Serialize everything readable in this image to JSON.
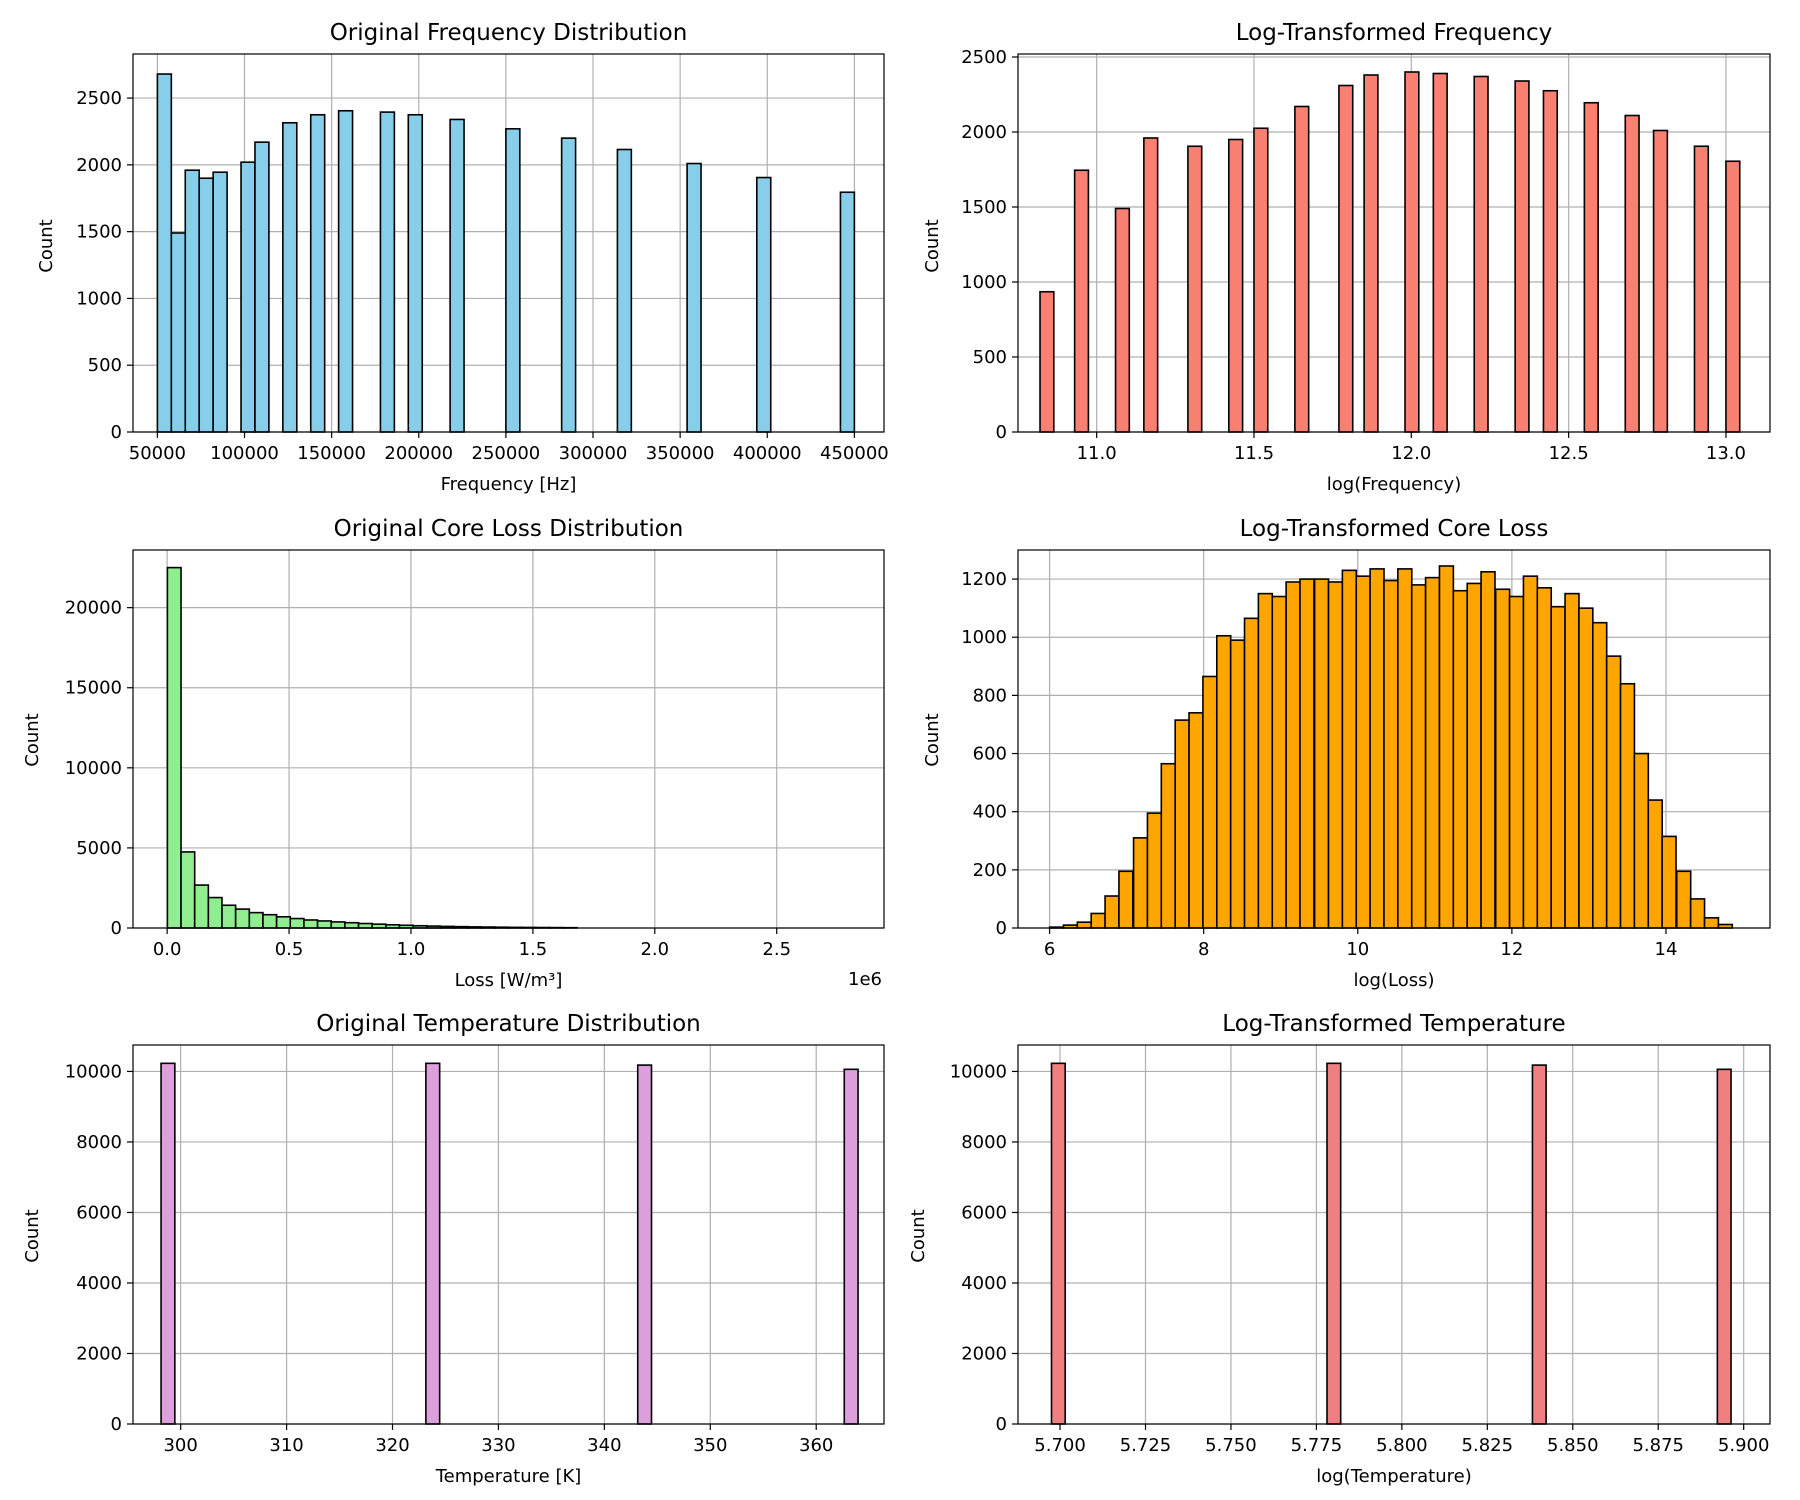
{
  "chart_data": [
    {
      "type": "bar",
      "title": "Original Frequency Distribution",
      "xlabel": "Frequency [Hz]",
      "ylabel": "Count",
      "xlim": [
        36000,
        467000
      ],
      "ylim": [
        0,
        2830
      ],
      "xticks": [
        50000,
        100000,
        150000,
        200000,
        250000,
        300000,
        350000,
        400000,
        450000
      ],
      "yticks": [
        0,
        500,
        1000,
        1500,
        2000,
        2500
      ],
      "grid": true,
      "color": "#87ceeb",
      "bin_width": 8000,
      "bins": [
        [
          50000,
          2680
        ],
        [
          58000,
          1490
        ],
        [
          66000,
          1960
        ],
        [
          74000,
          1900
        ],
        [
          82000,
          1945
        ],
        [
          98000,
          2020
        ],
        [
          106000,
          2170
        ],
        [
          122000,
          2315
        ],
        [
          138000,
          2375
        ],
        [
          154000,
          2405
        ],
        [
          178000,
          2395
        ],
        [
          194000,
          2375
        ],
        [
          218000,
          2340
        ],
        [
          250000,
          2270
        ],
        [
          282000,
          2200
        ],
        [
          314000,
          2115
        ],
        [
          354000,
          2010
        ],
        [
          394000,
          1905
        ],
        [
          442000,
          1795
        ]
      ]
    },
    {
      "type": "bar",
      "title": "Log-Transformed Frequency",
      "xlabel": "log(Frequency)",
      "ylabel": "Count",
      "xlim": [
        10.75,
        13.14
      ],
      "ylim": [
        0,
        2520
      ],
      "xticks": [
        11.0,
        11.5,
        12.0,
        12.5,
        13.0
      ],
      "xtick_labels": [
        "11.0",
        "11.5",
        "12.0",
        "12.5",
        "13.0"
      ],
      "yticks": [
        0,
        500,
        1000,
        1500,
        2000,
        2500
      ],
      "grid": true,
      "color": "#fa8072",
      "bin_width": 0.0438,
      "bins": [
        [
          10.82,
          935
        ],
        [
          10.93,
          1745
        ],
        [
          11.06,
          1490
        ],
        [
          11.15,
          1960
        ],
        [
          11.29,
          1905
        ],
        [
          11.42,
          1950
        ],
        [
          11.5,
          2025
        ],
        [
          11.63,
          2170
        ],
        [
          11.77,
          2310
        ],
        [
          11.85,
          2380
        ],
        [
          11.98,
          2400
        ],
        [
          12.07,
          2390
        ],
        [
          12.2,
          2370
        ],
        [
          12.33,
          2340
        ],
        [
          12.42,
          2275
        ],
        [
          12.55,
          2195
        ],
        [
          12.68,
          2110
        ],
        [
          12.77,
          2010
        ],
        [
          12.9,
          1905
        ],
        [
          13.0,
          1805
        ]
      ]
    },
    {
      "type": "bar",
      "title": "Original Core Loss Distribution",
      "xlabel": "Loss [W/m³]",
      "ylabel": "Count",
      "offset_label": "1e6",
      "xlim": [
        -140000,
        2940000
      ],
      "ylim": [
        0,
        23600
      ],
      "xticks": [
        0.0,
        0.5,
        1.0,
        1.5,
        2.0,
        2.5
      ],
      "xtick_labels": [
        "0.0",
        "0.5",
        "1.0",
        "1.5",
        "2.0",
        "2.5"
      ],
      "yticks": [
        0,
        5000,
        10000,
        15000,
        20000
      ],
      "grid": true,
      "color": "#90ee90",
      "bin_width": 56000,
      "bins": [
        [
          1000,
          22500
        ],
        [
          57000,
          4750
        ],
        [
          113000,
          2680
        ],
        [
          169000,
          1900
        ],
        [
          225000,
          1420
        ],
        [
          281000,
          1180
        ],
        [
          337000,
          960
        ],
        [
          393000,
          830
        ],
        [
          449000,
          700
        ],
        [
          505000,
          590
        ],
        [
          561000,
          500
        ],
        [
          617000,
          440
        ],
        [
          673000,
          380
        ],
        [
          729000,
          330
        ],
        [
          785000,
          280
        ],
        [
          841000,
          240
        ],
        [
          897000,
          200
        ],
        [
          953000,
          170
        ],
        [
          1009000,
          140
        ],
        [
          1065000,
          120
        ],
        [
          1121000,
          100
        ],
        [
          1177000,
          85
        ],
        [
          1233000,
          70
        ],
        [
          1289000,
          60
        ],
        [
          1345000,
          50
        ],
        [
          1401000,
          40
        ],
        [
          1457000,
          35
        ],
        [
          1513000,
          30
        ],
        [
          1569000,
          25
        ],
        [
          1625000,
          20
        ]
      ]
    },
    {
      "type": "bar",
      "title": "Log-Transformed Core Loss",
      "xlabel": "log(Loss)",
      "ylabel": "Count",
      "xlim": [
        5.59,
        15.35
      ],
      "ylim": [
        0,
        1300
      ],
      "xticks": [
        6,
        8,
        10,
        12,
        14
      ],
      "yticks": [
        0,
        200,
        400,
        600,
        800,
        1000,
        1200
      ],
      "grid": true,
      "color": "#ffa500",
      "bin_width": 0.1806,
      "bins": [
        [
          6.0,
          3
        ],
        [
          6.18,
          10
        ],
        [
          6.36,
          20
        ],
        [
          6.54,
          50
        ],
        [
          6.72,
          110
        ],
        [
          6.9,
          195
        ],
        [
          7.09,
          310
        ],
        [
          7.27,
          395
        ],
        [
          7.45,
          565
        ],
        [
          7.63,
          715
        ],
        [
          7.81,
          740
        ],
        [
          7.99,
          865
        ],
        [
          8.17,
          1005
        ],
        [
          8.35,
          990
        ],
        [
          8.53,
          1065
        ],
        [
          8.71,
          1150
        ],
        [
          8.89,
          1140
        ],
        [
          9.07,
          1190
        ],
        [
          9.25,
          1200
        ],
        [
          9.44,
          1200
        ],
        [
          9.62,
          1190
        ],
        [
          9.8,
          1230
        ],
        [
          9.98,
          1210
        ],
        [
          10.16,
          1235
        ],
        [
          10.34,
          1195
        ],
        [
          10.52,
          1235
        ],
        [
          10.7,
          1180
        ],
        [
          10.88,
          1205
        ],
        [
          11.06,
          1245
        ],
        [
          11.24,
          1160
        ],
        [
          11.42,
          1185
        ],
        [
          11.6,
          1225
        ],
        [
          11.79,
          1165
        ],
        [
          11.97,
          1140
        ],
        [
          12.15,
          1210
        ],
        [
          12.33,
          1170
        ],
        [
          12.51,
          1105
        ],
        [
          12.69,
          1150
        ],
        [
          12.87,
          1100
        ],
        [
          13.05,
          1050
        ],
        [
          13.23,
          935
        ],
        [
          13.41,
          840
        ],
        [
          13.59,
          600
        ],
        [
          13.77,
          440
        ],
        [
          13.95,
          315
        ],
        [
          14.14,
          195
        ],
        [
          14.32,
          100
        ],
        [
          14.5,
          35
        ],
        [
          14.68,
          12
        ]
      ]
    },
    {
      "type": "bar",
      "title": "Original Temperature Distribution",
      "xlabel": "Temperature [K]",
      "ylabel": "Count",
      "xlim": [
        295.5,
        366.4
      ],
      "ylim": [
        0,
        10750
      ],
      "xticks": [
        300,
        310,
        320,
        330,
        340,
        350,
        360
      ],
      "yticks": [
        0,
        2000,
        4000,
        6000,
        8000,
        10000
      ],
      "grid": true,
      "color": "#dda0dd",
      "bin_width": 1.3,
      "bins": [
        [
          298.15,
          10230
        ],
        [
          323.15,
          10230
        ],
        [
          343.15,
          10180
        ],
        [
          362.65,
          10060
        ]
      ]
    },
    {
      "type": "bar",
      "title": "Log-Transformed Temperature",
      "xlabel": "log(Temperature)",
      "ylabel": "Count",
      "xlim": [
        5.6877,
        5.9077
      ],
      "ylim": [
        0,
        10750
      ],
      "xticks": [
        5.7,
        5.725,
        5.75,
        5.775,
        5.8,
        5.825,
        5.85,
        5.875,
        5.9
      ],
      "xtick_labels": [
        "5.700",
        "5.725",
        "5.750",
        "5.775",
        "5.800",
        "5.825",
        "5.850",
        "5.875",
        "5.900"
      ],
      "yticks": [
        0,
        2000,
        4000,
        6000,
        8000,
        10000
      ],
      "grid": true,
      "color": "#f08080",
      "bin_width": 0.004,
      "bins": [
        [
          5.6975,
          10230
        ],
        [
          5.7781,
          10230
        ],
        [
          5.8382,
          10180
        ],
        [
          5.8923,
          10060
        ]
      ]
    }
  ]
}
